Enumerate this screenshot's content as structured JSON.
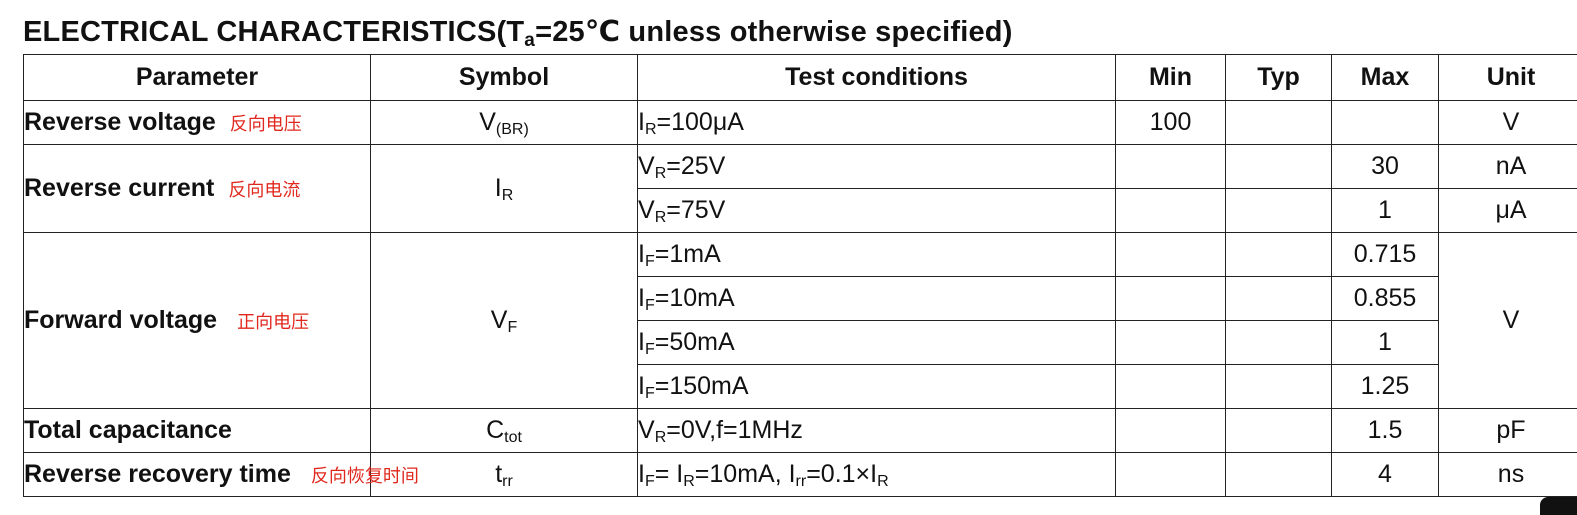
{
  "title": {
    "pre": "ELECTRICAL CHARACTERISTICS(T",
    "sub": "a",
    "post": "=25℃ unless otherwise specified)"
  },
  "headers": {
    "parameter": "Parameter",
    "symbol": "Symbol",
    "test_conditions": "Test conditions",
    "min": "Min",
    "typ": "Typ",
    "max": "Max",
    "unit": "Unit"
  },
  "rows": {
    "reverse_voltage": {
      "param": "Reverse voltage",
      "cn": "反向电压",
      "sym_main": "V",
      "sym_sub": "(BR)",
      "conditions": [
        {
          "pre": "I",
          "sub": "R",
          "post": "=100μA",
          "min": "100",
          "typ": "",
          "max": ""
        }
      ],
      "unit": "V"
    },
    "reverse_current": {
      "param": "Reverse current",
      "cn": "反向电流",
      "sym_main": "I",
      "sym_sub": "R",
      "conditions": [
        {
          "pre": "V",
          "sub": "R",
          "post": "=25V",
          "min": "",
          "typ": "",
          "max": "30",
          "unit": "nA"
        },
        {
          "pre": "V",
          "sub": "R",
          "post": "=75V",
          "min": "",
          "typ": "",
          "max": "1",
          "unit": "μA"
        }
      ]
    },
    "forward_voltage": {
      "param": "Forward voltage",
      "cn": "正向电压",
      "sym_main": "V",
      "sym_sub": "F",
      "conditions": [
        {
          "pre": "I",
          "sub": "F",
          "post": "=1mA",
          "max": "0.715"
        },
        {
          "pre": "I",
          "sub": "F",
          "post": "=10mA",
          "max": "0.855"
        },
        {
          "pre": "I",
          "sub": "F",
          "post": "=50mA",
          "max": "1"
        },
        {
          "pre": "I",
          "sub": "F",
          "post": "=150mA",
          "max": "1.25"
        }
      ],
      "unit": "V"
    },
    "total_capacitance": {
      "param": "Total capacitance",
      "sym_main": "C",
      "sym_sub": "tot",
      "conditions": [
        {
          "pre": "V",
          "sub": "R",
          "post": "=0V,f=1MHz",
          "max": "1.5"
        }
      ],
      "unit": "pF"
    },
    "reverse_recovery_time": {
      "param": "Reverse recovery time",
      "cn": "反向恢复时间",
      "sym_main": "t",
      "sym_sub": "rr",
      "conditions": [
        {
          "p1": "I",
          "s1": "F",
          "p2": "= I",
          "s2": "R",
          "p3": "=10mA, I",
          "s3": "rr",
          "p4": "=0.1×I",
          "s4": "R",
          "max": "4"
        }
      ],
      "unit": "ns"
    }
  }
}
